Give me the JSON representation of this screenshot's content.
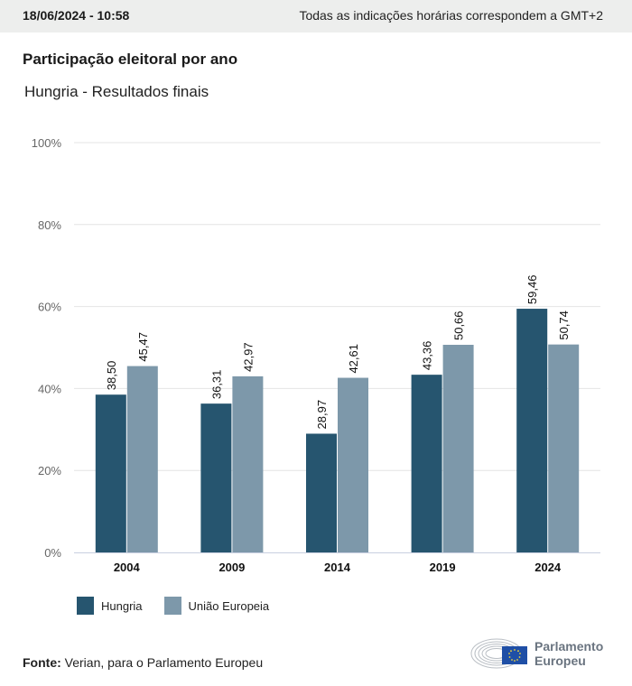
{
  "header": {
    "timestamp": "18/06/2024 - 10:58",
    "timezone_note": "Todas as indicações horárias correspondem a GMT+2"
  },
  "title": "Participação eleitoral por ano",
  "subtitle": "Hungria - Resultados finais",
  "source": {
    "label": "Fonte:",
    "text": "Verian, para o Parlamento Europeu"
  },
  "logo": {
    "line1": "Parlamento",
    "line2": "Europeu"
  },
  "colors": {
    "hungria": "#26556f",
    "ue": "#7d98aa",
    "grid": "#e4e4e4",
    "axis": "#c8cfe0"
  },
  "chart_data": {
    "type": "bar",
    "title": "Participação eleitoral por ano",
    "subtitle": "Hungria - Resultados finais",
    "xlabel": "",
    "ylabel": "",
    "categories": [
      "2004",
      "2009",
      "2014",
      "2019",
      "2024"
    ],
    "series": [
      {
        "name": "Hungria",
        "values": [
          38.5,
          36.31,
          28.97,
          43.36,
          59.46
        ],
        "labels": [
          "38,50",
          "36,31",
          "28,97",
          "43,36",
          "59,46"
        ]
      },
      {
        "name": "União Europeia",
        "values": [
          45.47,
          42.97,
          42.61,
          50.66,
          50.74
        ],
        "labels": [
          "45,47",
          "42,97",
          "42,61",
          "50,66",
          "50,74"
        ]
      }
    ],
    "ylim": [
      0,
      100
    ],
    "yticks": [
      0,
      20,
      40,
      60,
      80,
      100
    ],
    "ytick_labels": [
      "0%",
      "20%",
      "40%",
      "60%",
      "80%",
      "100%"
    ],
    "grid": true,
    "legend": "bottom-left"
  }
}
